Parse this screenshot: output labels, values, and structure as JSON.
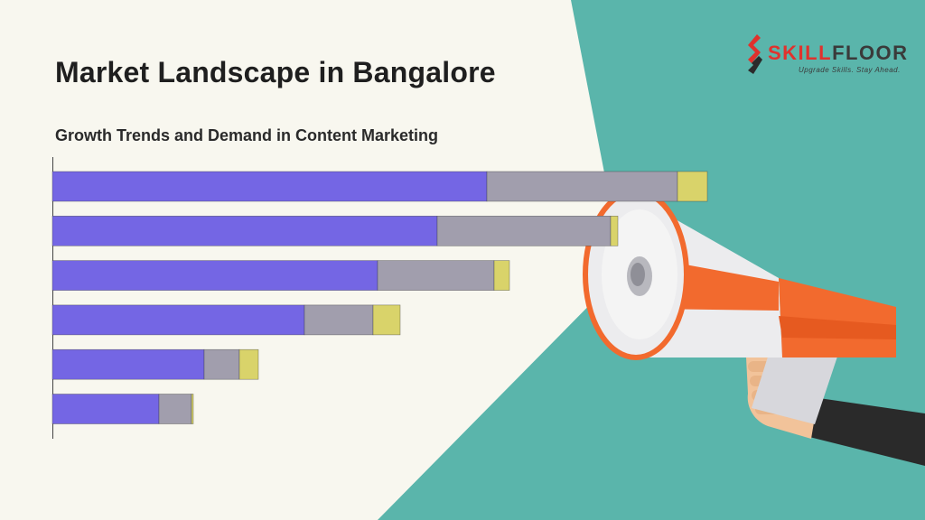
{
  "slide": {
    "title": "Market Landscape in Bangalore",
    "subtitle": "Growth Trends and Demand in Content Marketing"
  },
  "logo": {
    "name_accent": "SKILL",
    "name_rest": "FLOOR",
    "tagline": "Upgrade Skills. Stay Ahead."
  },
  "colors": {
    "background": "#f8f7ef",
    "teal": "#5ab5ab",
    "series_1": "#7466e4",
    "series_2": "#a19ead",
    "series_3": "#d9d36a"
  },
  "chart_data": {
    "type": "bar",
    "orientation": "horizontal",
    "stacked": true,
    "categories": [
      "",
      "",
      "",
      "",
      "",
      ""
    ],
    "series": [
      {
        "values": [
          48.1,
          42.6,
          36.0,
          27.9,
          16.8,
          11.8
        ],
        "color": "#7466e4"
      },
      {
        "values": [
          21.1,
          19.2,
          12.9,
          7.6,
          3.9,
          3.6
        ],
        "color": "#a19ead"
      },
      {
        "values": [
          3.3,
          0.8,
          1.7,
          3.0,
          2.1,
          0.2
        ],
        "color": "#d9d36a"
      }
    ],
    "xlim": [
      0,
      72.5
    ],
    "grid": false,
    "legend": "none"
  }
}
